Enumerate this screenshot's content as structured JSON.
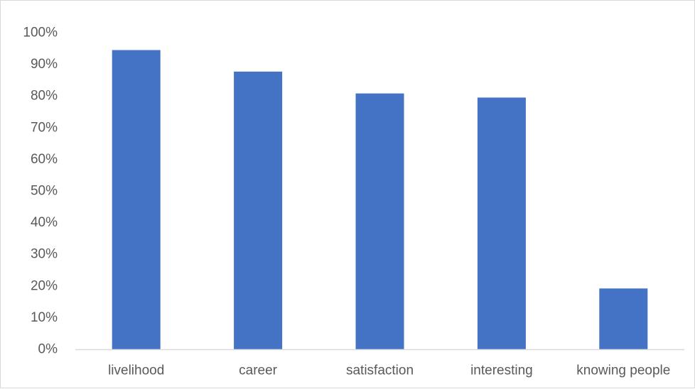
{
  "chart_data": {
    "type": "bar",
    "title": "",
    "xlabel": "",
    "ylabel": "",
    "categories": [
      "livelihood",
      "career",
      "satisfaction",
      "interesting",
      "knowing people"
    ],
    "values": [
      94.5,
      87.7,
      80.8,
      79.5,
      19.2
    ],
    "ylim": [
      0,
      100
    ],
    "ytick_values": [
      0,
      10,
      20,
      30,
      40,
      50,
      60,
      70,
      80,
      90,
      100
    ],
    "ytick_labels": [
      "0%",
      "10%",
      "20%",
      "30%",
      "40%",
      "50%",
      "60%",
      "70%",
      "80%",
      "90%",
      "100%"
    ],
    "grid": false,
    "legend": "none",
    "colors": {
      "bar": "#4472C4",
      "axis": "#d9d9d9",
      "text": "#595959"
    }
  }
}
